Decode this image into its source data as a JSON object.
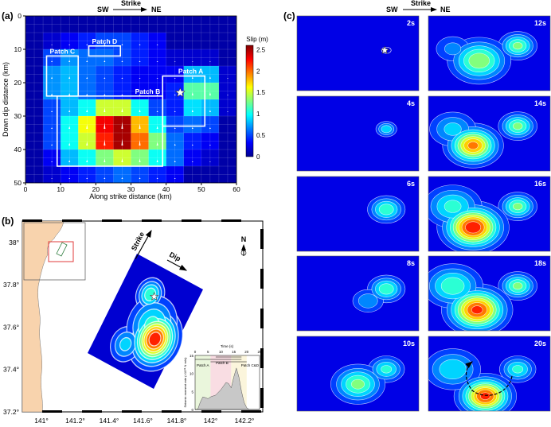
{
  "panel_labels": {
    "a": "(a)",
    "b": "(b)",
    "c": "(c)"
  },
  "strike_header": {
    "sw": "SW",
    "strike": "Strike",
    "ne": "NE"
  },
  "chart_data": [
    {
      "type": "heatmap",
      "panel": "a",
      "xlabel": "Along strike distance  (km)",
      "ylabel": "Down dip distance (km)",
      "xlim": [
        0,
        60
      ],
      "ylim": [
        50,
        0
      ],
      "xticks": [
        "0",
        "10",
        "20",
        "30",
        "40",
        "50",
        "60"
      ],
      "yticks": [
        "0",
        "10",
        "20",
        "30",
        "40",
        "50"
      ],
      "cell_km": 5,
      "grid": true,
      "colorbar": {
        "label": "Slip (m)",
        "range": [
          0,
          2.6
        ],
        "ticks": [
          "0",
          "0.5",
          "1",
          "1.5",
          "2",
          "2.5"
        ],
        "colormap": "jet"
      },
      "slip": [
        [
          0.1,
          0.1,
          0.1,
          0.1,
          0.1,
          0.1,
          0.1,
          0.1,
          0.1,
          0.1,
          0.1,
          0.1
        ],
        [
          0.1,
          0.2,
          0.3,
          0.4,
          0.5,
          0.5,
          0.4,
          0.3,
          0.1,
          0.1,
          0.1,
          0.1
        ],
        [
          0.1,
          0.5,
          0.7,
          0.6,
          0.6,
          0.5,
          0.4,
          0.3,
          0.2,
          0.2,
          0.2,
          0.1
        ],
        [
          0.1,
          0.7,
          0.8,
          0.6,
          0.5,
          0.4,
          0.3,
          0.3,
          0.3,
          0.8,
          0.8,
          0.2
        ],
        [
          0.1,
          0.7,
          0.8,
          0.6,
          0.5,
          0.4,
          0.3,
          0.3,
          0.4,
          1.2,
          1.2,
          0.2
        ],
        [
          0.1,
          0.5,
          0.8,
          1.0,
          1.5,
          1.5,
          1.0,
          0.5,
          0.4,
          0.9,
          0.8,
          0.2
        ],
        [
          0.1,
          0.5,
          1.0,
          1.6,
          2.3,
          2.5,
          1.8,
          1.0,
          0.5,
          0.6,
          0.5,
          0.1
        ],
        [
          0.1,
          0.5,
          1.0,
          1.5,
          2.2,
          2.5,
          2.0,
          1.3,
          0.6,
          0.4,
          0.3,
          0.1
        ],
        [
          0.1,
          0.3,
          0.8,
          1.0,
          1.3,
          1.5,
          1.3,
          1.0,
          0.6,
          0.3,
          0.2,
          0.1
        ],
        [
          0.1,
          0.2,
          0.3,
          0.4,
          0.5,
          0.6,
          0.5,
          0.4,
          0.3,
          0.1,
          0.1,
          0.1
        ]
      ],
      "patches": [
        {
          "label": "Patch A",
          "x": [
            39,
            51
          ],
          "y": [
            18,
            33
          ]
        },
        {
          "label": "Patch B",
          "x": [
            9,
            39
          ],
          "y": [
            24,
            45
          ]
        },
        {
          "label": "Patch C",
          "x": [
            6,
            15
          ],
          "y": [
            12,
            24
          ]
        },
        {
          "label": "Patch D",
          "x": [
            18,
            27
          ],
          "y": [
            9,
            12
          ]
        }
      ],
      "hypocenter": {
        "strike_km": 44,
        "dip_km": 23
      }
    },
    {
      "type": "map",
      "panel": "b",
      "lon_ticks": [
        "141°",
        "141.2°",
        "141.4°",
        "141.6°",
        "141.8°",
        "142°",
        "142.2°"
      ],
      "lat_ticks": [
        "38°",
        "37.8°",
        "37.6°",
        "37.4°",
        "37.2°"
      ],
      "labels": {
        "strike": "Strike",
        "dip": "Dip",
        "north": "N"
      },
      "colors": {
        "land": "#f8d3ad",
        "inset_box": "#e23b3b"
      }
    },
    {
      "type": "area",
      "panel": "b-inset",
      "xlabel": "Time (s)",
      "ylabel": "Seismic moment rate (×10¹⁸ N·m/s)",
      "xlim": [
        0,
        25
      ],
      "ylim": [
        0,
        15
      ],
      "xticks": [
        "0",
        "5",
        "10",
        "15",
        "20",
        "25"
      ],
      "yticks": [
        "0",
        "5",
        "10",
        "15"
      ],
      "x": [
        0,
        1,
        2,
        3,
        4,
        5,
        6,
        8,
        10,
        12,
        13,
        14,
        15,
        16,
        17,
        18,
        19,
        20,
        21,
        25
      ],
      "y": [
        0,
        0,
        2,
        3.5,
        3.3,
        3,
        3.5,
        4,
        5.5,
        7.5,
        7.2,
        6,
        9,
        11.5,
        9,
        5,
        2,
        0.5,
        0,
        0
      ],
      "stages": [
        {
          "label": "Patch A",
          "t": [
            0,
            6
          ],
          "color": "#eaf6dc"
        },
        {
          "label": "Patch B",
          "t": [
            6,
            14
          ],
          "color": "#f9dde3"
        },
        {
          "label": "Patch C&D",
          "t": [
            14,
            20
          ],
          "color": "#fbf5dc"
        }
      ]
    },
    {
      "type": "heatmap",
      "panel": "c",
      "description_header": {
        "sw": "SW",
        "strike": "Strike",
        "ne": "NE"
      },
      "snapshots": [
        {
          "time": "2s",
          "blobs": []
        },
        {
          "time": "4s",
          "blobs": [
            [
              44,
              22,
              0.35,
              3
            ]
          ]
        },
        {
          "time": "6s",
          "blobs": [
            [
              44,
              22,
              0.45,
              5
            ]
          ]
        },
        {
          "time": "8s",
          "blobs": [
            [
              44,
              22,
              0.45,
              5
            ],
            [
              35,
              30,
              0.25,
              5
            ]
          ]
        },
        {
          "time": "10s",
          "blobs": [
            [
              44,
              22,
              0.4,
              5
            ],
            [
              30,
              32,
              0.5,
              7
            ]
          ]
        },
        {
          "time": "12s",
          "blobs": [
            [
              44,
              20,
              0.5,
              5
            ],
            [
              25,
              30,
              0.55,
              8
            ],
            [
              12,
              22,
              0.2,
              6
            ]
          ]
        },
        {
          "time": "14s",
          "blobs": [
            [
              44,
              20,
              0.5,
              5
            ],
            [
              22,
              33,
              0.8,
              7
            ],
            [
              12,
              22,
              0.3,
              7
            ]
          ]
        },
        {
          "time": "16s",
          "blobs": [
            [
              44,
              20,
              0.5,
              5
            ],
            [
              22,
              34,
              0.95,
              8
            ],
            [
              12,
              20,
              0.4,
              8
            ]
          ]
        },
        {
          "time": "18s",
          "blobs": [
            [
              44,
              20,
              0.5,
              5
            ],
            [
              24,
              36,
              0.9,
              8
            ],
            [
              12,
              20,
              0.45,
              8
            ]
          ]
        },
        {
          "time": "20s",
          "blobs": [
            [
              44,
              22,
              0.4,
              5
            ],
            [
              28,
              40,
              0.9,
              7
            ],
            [
              12,
              22,
              0.35,
              8
            ]
          ]
        }
      ]
    }
  ]
}
